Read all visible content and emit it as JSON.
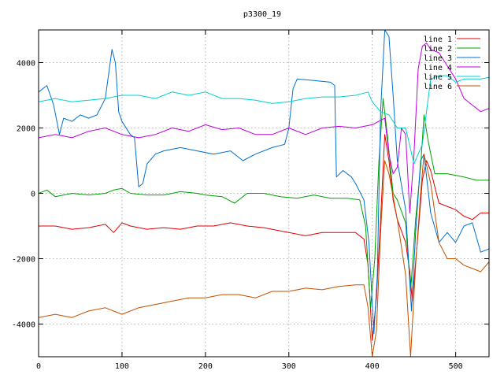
{
  "chart_data": {
    "type": "line",
    "title": "p3300_19",
    "xlabel": "",
    "ylabel": "",
    "xlim": [
      0,
      540
    ],
    "ylim": [
      -5000,
      5000
    ],
    "x_ticks": [
      0,
      100,
      200,
      300,
      400,
      500
    ],
    "y_ticks": [
      -4000,
      -2000,
      0,
      2000,
      4000
    ],
    "x_tick_labels": [
      "0",
      "100",
      "200",
      "300",
      "400",
      "500"
    ],
    "y_tick_labels": [
      "-4000",
      "-2000",
      "0",
      "2000",
      "4000"
    ],
    "grid": true,
    "legend_position": "top-right",
    "series": [
      {
        "name": "line 1",
        "color": "#e00000",
        "points": [
          [
            0,
            -1000
          ],
          [
            20,
            -1000
          ],
          [
            40,
            -1100
          ],
          [
            60,
            -1050
          ],
          [
            80,
            -950
          ],
          [
            90,
            -1200
          ],
          [
            100,
            -900
          ],
          [
            110,
            -1000
          ],
          [
            130,
            -1100
          ],
          [
            150,
            -1050
          ],
          [
            170,
            -1100
          ],
          [
            190,
            -1000
          ],
          [
            210,
            -1000
          ],
          [
            230,
            -900
          ],
          [
            250,
            -1000
          ],
          [
            270,
            -1050
          ],
          [
            290,
            -1150
          ],
          [
            300,
            -1200
          ],
          [
            320,
            -1300
          ],
          [
            340,
            -1200
          ],
          [
            360,
            -1200
          ],
          [
            380,
            -1200
          ],
          [
            390,
            -1400
          ],
          [
            395,
            -2200
          ],
          [
            400,
            -4500
          ],
          [
            405,
            -3200
          ],
          [
            410,
            -800
          ],
          [
            415,
            1800
          ],
          [
            420,
            1000
          ],
          [
            425,
            -200
          ],
          [
            430,
            -800
          ],
          [
            440,
            -1500
          ],
          [
            445,
            -2400
          ],
          [
            448,
            -3300
          ],
          [
            455,
            -1200
          ],
          [
            460,
            400
          ],
          [
            465,
            1000
          ],
          [
            470,
            700
          ],
          [
            480,
            -300
          ],
          [
            490,
            -400
          ],
          [
            500,
            -500
          ],
          [
            510,
            -700
          ],
          [
            520,
            -800
          ],
          [
            530,
            -600
          ],
          [
            540,
            -600
          ]
        ]
      },
      {
        "name": "line 2",
        "color": "#00a000",
        "points": [
          [
            0,
            0
          ],
          [
            10,
            100
          ],
          [
            20,
            -100
          ],
          [
            40,
            0
          ],
          [
            60,
            -50
          ],
          [
            80,
            0
          ],
          [
            90,
            100
          ],
          [
            100,
            150
          ],
          [
            110,
            0
          ],
          [
            130,
            -50
          ],
          [
            150,
            -50
          ],
          [
            170,
            50
          ],
          [
            190,
            0
          ],
          [
            200,
            -50
          ],
          [
            220,
            -100
          ],
          [
            235,
            -300
          ],
          [
            250,
            0
          ],
          [
            270,
            0
          ],
          [
            290,
            -100
          ],
          [
            310,
            -150
          ],
          [
            330,
            -50
          ],
          [
            350,
            -150
          ],
          [
            370,
            -150
          ],
          [
            385,
            -200
          ],
          [
            392,
            -1000
          ],
          [
            398,
            -3500
          ],
          [
            403,
            -2000
          ],
          [
            408,
            1000
          ],
          [
            413,
            2900
          ],
          [
            418,
            1800
          ],
          [
            425,
            0
          ],
          [
            430,
            -200
          ],
          [
            440,
            -900
          ],
          [
            446,
            -3000
          ],
          [
            452,
            -800
          ],
          [
            458,
            800
          ],
          [
            462,
            2400
          ],
          [
            467,
            1600
          ],
          [
            475,
            600
          ],
          [
            490,
            600
          ],
          [
            510,
            500
          ],
          [
            525,
            400
          ],
          [
            540,
            400
          ]
        ]
      },
      {
        "name": "line 3",
        "color": "#0070d0",
        "points": [
          [
            0,
            3100
          ],
          [
            10,
            3300
          ],
          [
            18,
            2700
          ],
          [
            25,
            1800
          ],
          [
            30,
            2300
          ],
          [
            40,
            2200
          ],
          [
            50,
            2400
          ],
          [
            60,
            2300
          ],
          [
            70,
            2400
          ],
          [
            80,
            2900
          ],
          [
            88,
            4400
          ],
          [
            92,
            4000
          ],
          [
            96,
            2500
          ],
          [
            100,
            2200
          ],
          [
            110,
            1800
          ],
          [
            115,
            1700
          ],
          [
            120,
            200
          ],
          [
            125,
            300
          ],
          [
            130,
            900
          ],
          [
            140,
            1200
          ],
          [
            150,
            1300
          ],
          [
            170,
            1400
          ],
          [
            190,
            1300
          ],
          [
            210,
            1200
          ],
          [
            230,
            1300
          ],
          [
            245,
            1000
          ],
          [
            260,
            1200
          ],
          [
            280,
            1400
          ],
          [
            295,
            1500
          ],
          [
            300,
            2000
          ],
          [
            305,
            3200
          ],
          [
            310,
            3500
          ],
          [
            330,
            3450
          ],
          [
            350,
            3400
          ],
          [
            355,
            3300
          ],
          [
            357,
            500
          ],
          [
            365,
            700
          ],
          [
            375,
            500
          ],
          [
            380,
            300
          ],
          [
            390,
            -200
          ],
          [
            396,
            -1500
          ],
          [
            402,
            -4300
          ],
          [
            406,
            -2500
          ],
          [
            410,
            2500
          ],
          [
            415,
            5000
          ],
          [
            420,
            4800
          ],
          [
            425,
            3000
          ],
          [
            430,
            1000
          ],
          [
            440,
            -500
          ],
          [
            447,
            -3600
          ],
          [
            452,
            -1200
          ],
          [
            458,
            1000
          ],
          [
            462,
            1200
          ],
          [
            470,
            -600
          ],
          [
            480,
            -1500
          ],
          [
            490,
            -1200
          ],
          [
            500,
            -1500
          ],
          [
            510,
            -1000
          ],
          [
            520,
            -900
          ],
          [
            530,
            -1800
          ],
          [
            540,
            -1700
          ]
        ]
      },
      {
        "name": "line 4",
        "color": "#c000e0",
        "points": [
          [
            0,
            1700
          ],
          [
            20,
            1800
          ],
          [
            40,
            1700
          ],
          [
            60,
            1900
          ],
          [
            80,
            2000
          ],
          [
            100,
            1800
          ],
          [
            120,
            1700
          ],
          [
            140,
            1800
          ],
          [
            160,
            2000
          ],
          [
            180,
            1900
          ],
          [
            200,
            2100
          ],
          [
            220,
            1950
          ],
          [
            240,
            2000
          ],
          [
            260,
            1800
          ],
          [
            280,
            1800
          ],
          [
            300,
            2000
          ],
          [
            320,
            1800
          ],
          [
            340,
            2000
          ],
          [
            360,
            2050
          ],
          [
            380,
            2000
          ],
          [
            400,
            2100
          ],
          [
            415,
            2300
          ],
          [
            420,
            1200
          ],
          [
            425,
            600
          ],
          [
            430,
            800
          ],
          [
            435,
            2000
          ],
          [
            440,
            1800
          ],
          [
            445,
            -600
          ],
          [
            450,
            1200
          ],
          [
            455,
            3800
          ],
          [
            460,
            4500
          ],
          [
            465,
            4600
          ],
          [
            470,
            4400
          ],
          [
            480,
            4300
          ],
          [
            500,
            3500
          ],
          [
            510,
            2900
          ],
          [
            520,
            2700
          ],
          [
            530,
            2500
          ],
          [
            540,
            2600
          ]
        ]
      },
      {
        "name": "line 5",
        "color": "#00d0d0",
        "points": [
          [
            0,
            2800
          ],
          [
            20,
            2900
          ],
          [
            40,
            2800
          ],
          [
            60,
            2850
          ],
          [
            80,
            2900
          ],
          [
            100,
            3000
          ],
          [
            120,
            3000
          ],
          [
            140,
            2900
          ],
          [
            160,
            3100
          ],
          [
            180,
            3000
          ],
          [
            200,
            3100
          ],
          [
            220,
            2900
          ],
          [
            240,
            2900
          ],
          [
            260,
            2850
          ],
          [
            280,
            2750
          ],
          [
            300,
            2800
          ],
          [
            320,
            2900
          ],
          [
            340,
            2950
          ],
          [
            360,
            2950
          ],
          [
            380,
            3000
          ],
          [
            395,
            3100
          ],
          [
            400,
            2800
          ],
          [
            410,
            2500
          ],
          [
            420,
            2400
          ],
          [
            430,
            2000
          ],
          [
            440,
            2000
          ],
          [
            450,
            900
          ],
          [
            455,
            1200
          ],
          [
            460,
            1500
          ],
          [
            470,
            3500
          ],
          [
            480,
            3600
          ],
          [
            490,
            3600
          ],
          [
            500,
            3400
          ],
          [
            510,
            3500
          ],
          [
            520,
            3500
          ],
          [
            530,
            3500
          ],
          [
            540,
            3550
          ]
        ]
      },
      {
        "name": "line 6",
        "color": "#c05000",
        "points": [
          [
            0,
            -3800
          ],
          [
            20,
            -3700
          ],
          [
            40,
            -3800
          ],
          [
            60,
            -3600
          ],
          [
            80,
            -3500
          ],
          [
            100,
            -3700
          ],
          [
            120,
            -3500
          ],
          [
            140,
            -3400
          ],
          [
            160,
            -3300
          ],
          [
            180,
            -3200
          ],
          [
            200,
            -3200
          ],
          [
            220,
            -3100
          ],
          [
            240,
            -3100
          ],
          [
            260,
            -3200
          ],
          [
            280,
            -3000
          ],
          [
            300,
            -3000
          ],
          [
            320,
            -2900
          ],
          [
            340,
            -2950
          ],
          [
            360,
            -2850
          ],
          [
            380,
            -2800
          ],
          [
            390,
            -2800
          ],
          [
            395,
            -3500
          ],
          [
            400,
            -5000
          ],
          [
            405,
            -4200
          ],
          [
            410,
            -1200
          ],
          [
            415,
            1000
          ],
          [
            420,
            600
          ],
          [
            430,
            -800
          ],
          [
            440,
            -2500
          ],
          [
            446,
            -5000
          ],
          [
            452,
            -2200
          ],
          [
            458,
            0
          ],
          [
            462,
            1200
          ],
          [
            470,
            300
          ],
          [
            480,
            -1500
          ],
          [
            490,
            -2000
          ],
          [
            500,
            -2000
          ],
          [
            510,
            -2200
          ],
          [
            520,
            -2300
          ],
          [
            530,
            -2400
          ],
          [
            540,
            -2100
          ]
        ]
      }
    ]
  }
}
